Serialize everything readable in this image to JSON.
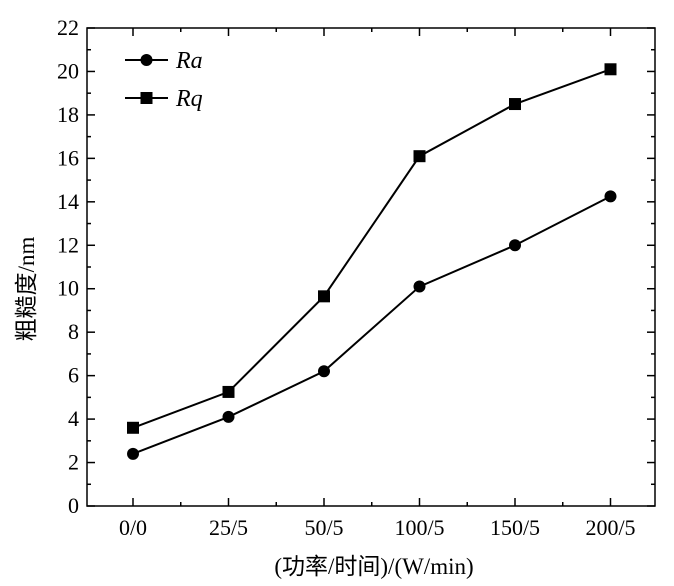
{
  "chart_data": {
    "type": "line",
    "title": "",
    "xlabel": "(功率/时间)/(W/min)",
    "ylabel": "粗糙度/nm",
    "categories": [
      "0/0",
      "25/5",
      "50/5",
      "100/5",
      "150/5",
      "200/5"
    ],
    "ylim": [
      0,
      22
    ],
    "yticks": [
      0,
      2,
      4,
      6,
      8,
      10,
      12,
      14,
      16,
      18,
      20,
      22
    ],
    "grid": false,
    "legend_position": "top-left",
    "series": [
      {
        "name": "Ra",
        "marker": "circle",
        "color": "#000000",
        "values": [
          2.4,
          4.1,
          6.2,
          10.1,
          12.0,
          14.25
        ]
      },
      {
        "name": "Rq",
        "marker": "square",
        "color": "#000000",
        "values": [
          3.6,
          5.25,
          9.65,
          16.1,
          18.5,
          20.1
        ]
      }
    ]
  }
}
